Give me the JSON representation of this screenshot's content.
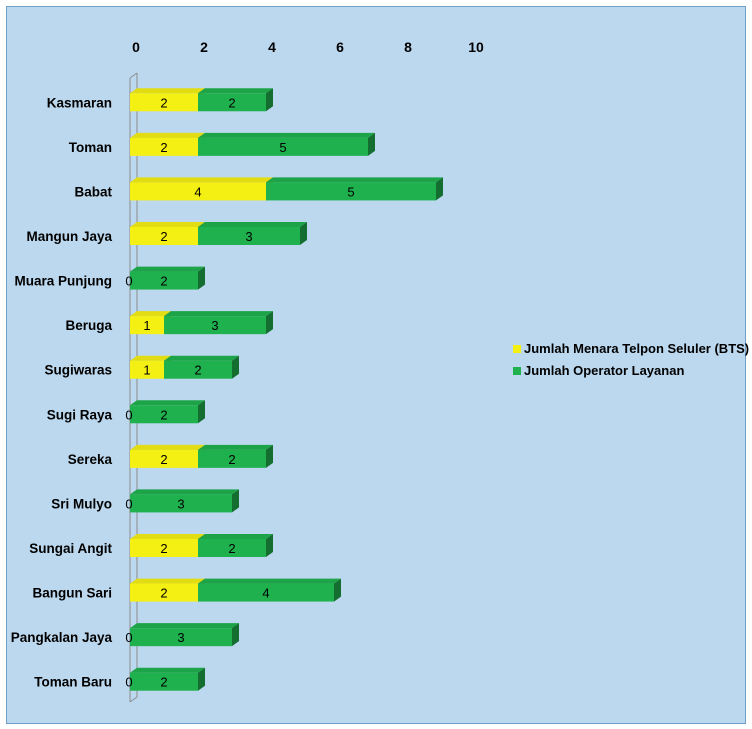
{
  "chart_data": {
    "type": "bar",
    "orientation": "horizontal",
    "stacked": true,
    "categories": [
      "Kasmaran",
      "Toman",
      "Babat",
      "Mangun Jaya",
      "Muara Punjung",
      "Beruga",
      "Sugiwaras",
      "Sugi Raya",
      "Sereka",
      "Sri Mulyo",
      "Sungai Angit",
      "Bangun Sari",
      "Pangkalan Jaya",
      "Toman Baru"
    ],
    "series": [
      {
        "name": "Jumlah Menara Telpon Seluler (BTS)",
        "color": "#f5f014",
        "values": [
          2,
          2,
          4,
          2,
          0,
          1,
          1,
          0,
          2,
          0,
          2,
          2,
          0,
          0
        ]
      },
      {
        "name": "Jumlah Operator Layanan",
        "color": "#1fb14e",
        "values": [
          2,
          5,
          5,
          3,
          2,
          3,
          2,
          2,
          2,
          3,
          2,
          4,
          3,
          2
        ]
      }
    ],
    "xlim": [
      0,
      10
    ],
    "xticks": [
      "0",
      "2",
      "4",
      "6",
      "8",
      "10"
    ],
    "axis_position": "top",
    "grid": false,
    "legend_position": "right"
  }
}
